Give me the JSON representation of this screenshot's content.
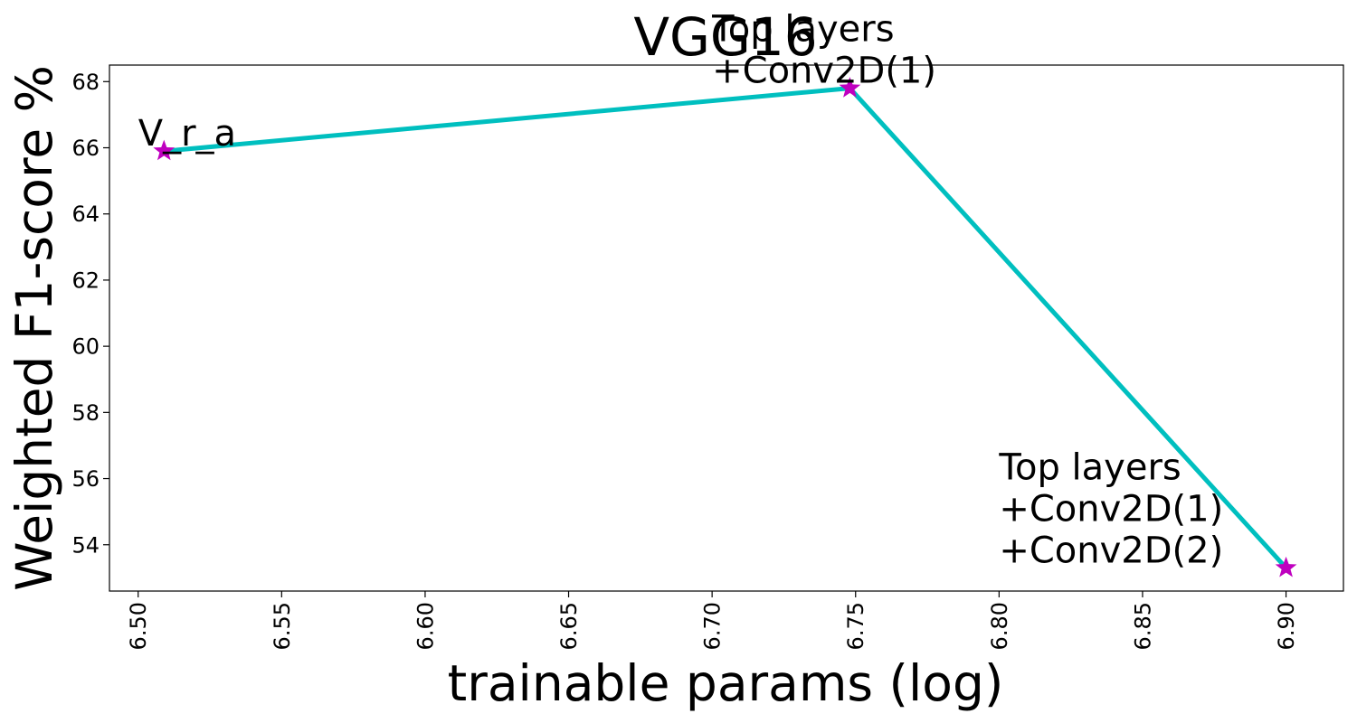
{
  "chart_data": {
    "type": "line",
    "title": "VGG16",
    "xlabel": "trainable params (log)",
    "ylabel": "Weighted F1-score %",
    "xlim": [
      6.49,
      6.92
    ],
    "ylim": [
      52.6,
      68.5
    ],
    "x_ticks": [
      "6.50",
      "6.55",
      "6.60",
      "6.65",
      "6.70",
      "6.75",
      "6.80",
      "6.85",
      "6.90"
    ],
    "y_ticks": [
      "54",
      "56",
      "58",
      "60",
      "62",
      "64",
      "66",
      "68"
    ],
    "grid": false,
    "series": [
      {
        "x": [
          6.509,
          6.748,
          6.9
        ],
        "y": [
          65.9,
          67.8,
          53.3
        ],
        "line_color": "#00bfbf",
        "marker": "star",
        "marker_color": "#bf00bf"
      }
    ],
    "annotations": [
      {
        "lines": [
          "V_r_a"
        ],
        "x": 6.5,
        "y": 65.9
      },
      {
        "lines": [
          "Top layers",
          "+Conv2D(1)"
        ],
        "x": 6.7,
        "y": 67.8
      },
      {
        "lines": [
          "Top layers",
          "+Conv2D(1)",
          "+Conv2D(2)"
        ],
        "x": 6.8,
        "y": 53.3
      }
    ]
  }
}
